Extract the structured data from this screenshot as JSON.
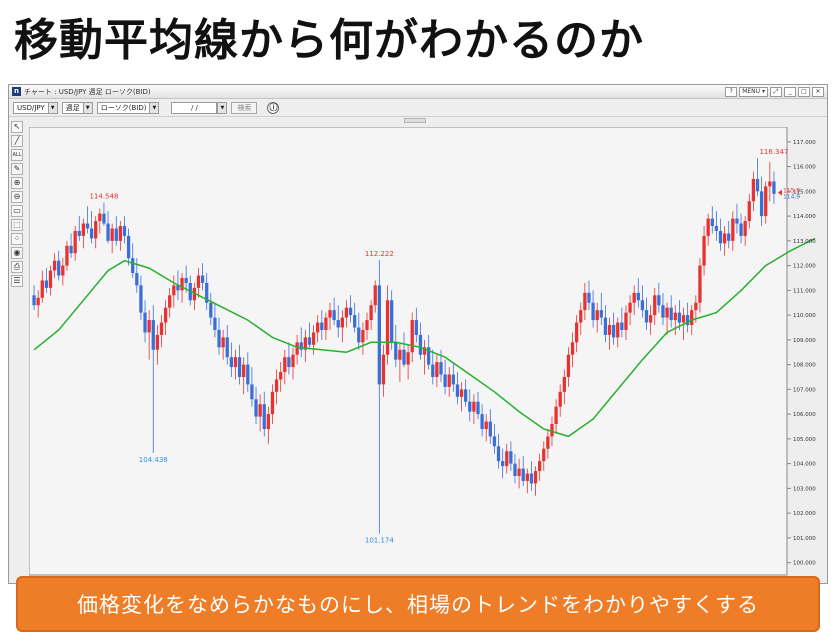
{
  "slide": {
    "title": "移動平均線から何がわかるのか",
    "caption": "価格変化をなめらかなものにし、相場のトレンドをわかりやすくする"
  },
  "window": {
    "title": "チャート : USD/JPY 週足 ローソク(BID)",
    "controls": [
      "?",
      "MENU ▾",
      "⤢",
      "_",
      "□",
      "✕"
    ]
  },
  "toolbar": {
    "symbol": "USD/JPY",
    "period": "週足",
    "chart_type": "ローソク(BID)",
    "date": "/ /",
    "search": "検索",
    "info": "ⓘ"
  },
  "tools": [
    "↖",
    "╱",
    "ALL",
    "✎",
    "⊕",
    "⊖",
    "▭",
    "⬚",
    "⁘",
    "◉",
    "⎙",
    "☰"
  ],
  "colors": {
    "up": "#e8322f",
    "down": "#3a6fd8",
    "ma": "#27b02e",
    "high_label": "#e8322f",
    "low_label": "#2f8fe0"
  },
  "chart_data": {
    "type": "candlestick",
    "title": "",
    "ylim": [
      99.5,
      117.6
    ],
    "y_ticks": [
      "117.000",
      "116.000",
      "115.000",
      "114.000",
      "113.000",
      "112.000",
      "111.000",
      "110.000",
      "109.000",
      "108.000",
      "107.000",
      "106.000",
      "105.000",
      "104.000",
      "103.000",
      "102.000",
      "101.000",
      "100.000"
    ],
    "y_tick_values": [
      117,
      116,
      115,
      114,
      113,
      112,
      111,
      110,
      109,
      108,
      107,
      106,
      105,
      104,
      103,
      102,
      101,
      100
    ],
    "annotations": [
      {
        "label": "114.548",
        "value": 114.548,
        "index": 17,
        "kind": "high"
      },
      {
        "label": "104.438",
        "value": 104.438,
        "index": 29,
        "kind": "low"
      },
      {
        "label": "112.222",
        "value": 112.222,
        "index": 84,
        "kind": "high"
      },
      {
        "label": "101.174",
        "value": 101.174,
        "index": 84,
        "kind": "low"
      },
      {
        "label": "116.347",
        "value": 116.347,
        "index": 180,
        "kind": "high"
      }
    ],
    "last_price": {
      "bid": "115.0",
      "ask": "114.9"
    },
    "ohlc": [
      [
        110.8,
        111.2,
        110.2,
        110.4
      ],
      [
        110.4,
        111.0,
        109.9,
        110.7
      ],
      [
        110.7,
        111.8,
        110.5,
        111.4
      ],
      [
        111.4,
        111.9,
        110.9,
        111.1
      ],
      [
        111.1,
        112.0,
        110.8,
        111.8
      ],
      [
        111.8,
        112.5,
        111.5,
        112.2
      ],
      [
        112.2,
        112.6,
        111.4,
        111.6
      ],
      [
        111.6,
        112.3,
        111.2,
        112.0
      ],
      [
        112.0,
        113.0,
        111.8,
        112.8
      ],
      [
        112.8,
        113.3,
        112.3,
        112.5
      ],
      [
        112.5,
        113.6,
        112.2,
        113.4
      ],
      [
        113.4,
        114.0,
        113.0,
        113.2
      ],
      [
        113.2,
        113.9,
        112.7,
        113.7
      ],
      [
        113.7,
        114.4,
        113.3,
        113.5
      ],
      [
        113.5,
        114.2,
        112.9,
        113.1
      ],
      [
        113.1,
        114.0,
        112.7,
        113.8
      ],
      [
        113.8,
        114.3,
        113.3,
        114.1
      ],
      [
        114.1,
        114.548,
        113.6,
        113.7
      ],
      [
        113.7,
        114.2,
        112.9,
        113.0
      ],
      [
        113.0,
        113.7,
        112.5,
        113.5
      ],
      [
        113.5,
        114.0,
        112.8,
        113.0
      ],
      [
        113.0,
        113.8,
        112.6,
        113.6
      ],
      [
        113.6,
        114.0,
        112.9,
        113.2
      ],
      [
        113.2,
        113.5,
        112.0,
        112.3
      ],
      [
        112.3,
        112.9,
        111.5,
        111.7
      ],
      [
        111.7,
        112.3,
        110.9,
        111.2
      ],
      [
        111.2,
        111.6,
        109.8,
        110.1
      ],
      [
        110.1,
        110.6,
        108.9,
        109.3
      ],
      [
        109.3,
        110.2,
        108.2,
        109.8
      ],
      [
        109.8,
        110.4,
        104.438,
        108.6
      ],
      [
        108.6,
        109.6,
        108.0,
        109.2
      ],
      [
        109.2,
        110.0,
        108.7,
        109.7
      ],
      [
        109.7,
        110.6,
        109.2,
        110.3
      ],
      [
        110.3,
        111.1,
        109.9,
        110.8
      ],
      [
        110.8,
        111.6,
        110.3,
        111.2
      ],
      [
        111.2,
        111.8,
        110.6,
        111.0
      ],
      [
        111.0,
        111.7,
        110.5,
        111.5
      ],
      [
        111.5,
        112.0,
        110.9,
        111.3
      ],
      [
        111.3,
        111.6,
        110.4,
        110.6
      ],
      [
        110.6,
        111.3,
        110.2,
        111.1
      ],
      [
        111.1,
        111.9,
        110.7,
        111.6
      ],
      [
        111.6,
        112.1,
        111.0,
        111.3
      ],
      [
        111.3,
        111.7,
        110.2,
        110.5
      ],
      [
        110.5,
        110.9,
        109.6,
        109.9
      ],
      [
        109.9,
        110.5,
        109.1,
        109.4
      ],
      [
        109.4,
        109.9,
        108.4,
        108.7
      ],
      [
        108.7,
        109.4,
        108.2,
        109.1
      ],
      [
        109.1,
        109.6,
        108.0,
        108.3
      ],
      [
        108.3,
        108.9,
        107.5,
        107.9
      ],
      [
        107.9,
        108.6,
        107.4,
        108.3
      ],
      [
        108.3,
        108.8,
        107.2,
        107.5
      ],
      [
        107.5,
        108.3,
        106.8,
        108.0
      ],
      [
        108.0,
        108.5,
        106.9,
        107.2
      ],
      [
        107.2,
        107.9,
        106.3,
        106.6
      ],
      [
        106.6,
        107.1,
        105.6,
        105.9
      ],
      [
        105.9,
        106.8,
        105.3,
        106.4
      ],
      [
        106.4,
        106.9,
        105.1,
        105.4
      ],
      [
        105.4,
        106.3,
        104.8,
        106.0
      ],
      [
        106.0,
        107.2,
        105.6,
        106.9
      ],
      [
        106.9,
        107.8,
        106.4,
        107.4
      ],
      [
        107.4,
        108.1,
        106.9,
        107.7
      ],
      [
        107.7,
        108.6,
        107.2,
        108.3
      ],
      [
        108.3,
        108.9,
        107.6,
        107.9
      ],
      [
        107.9,
        108.7,
        107.4,
        108.4
      ],
      [
        108.4,
        109.2,
        108.0,
        108.9
      ],
      [
        108.9,
        109.5,
        108.3,
        108.6
      ],
      [
        108.6,
        109.4,
        108.1,
        109.1
      ],
      [
        109.1,
        109.7,
        108.6,
        108.8
      ],
      [
        108.8,
        109.6,
        108.4,
        109.3
      ],
      [
        109.3,
        110.0,
        108.9,
        109.7
      ],
      [
        109.7,
        110.2,
        109.0,
        109.4
      ],
      [
        109.4,
        110.1,
        109.0,
        109.9
      ],
      [
        109.9,
        110.5,
        109.4,
        110.2
      ],
      [
        110.2,
        110.7,
        109.6,
        109.8
      ],
      [
        109.8,
        110.4,
        109.1,
        109.5
      ],
      [
        109.5,
        110.2,
        108.9,
        109.9
      ],
      [
        109.9,
        110.6,
        109.5,
        110.3
      ],
      [
        110.3,
        110.8,
        109.7,
        110.0
      ],
      [
        110.0,
        110.5,
        109.3,
        109.5
      ],
      [
        109.5,
        110.1,
        108.6,
        108.9
      ],
      [
        108.9,
        109.7,
        108.4,
        109.4
      ],
      [
        109.4,
        110.1,
        109.0,
        109.8
      ],
      [
        109.8,
        110.6,
        109.4,
        110.4
      ],
      [
        110.4,
        111.4,
        110.1,
        111.2
      ],
      [
        111.2,
        112.222,
        101.174,
        107.2
      ],
      [
        107.2,
        108.8,
        106.7,
        108.4
      ],
      [
        108.4,
        111.2,
        108.0,
        110.6
      ],
      [
        110.6,
        111.0,
        108.6,
        108.9
      ],
      [
        108.9,
        109.6,
        107.9,
        108.2
      ],
      [
        108.2,
        108.9,
        107.3,
        108.6
      ],
      [
        108.6,
        109.3,
        107.9,
        108.0
      ],
      [
        108.0,
        108.8,
        107.4,
        108.5
      ],
      [
        108.5,
        110.1,
        108.1,
        109.8
      ],
      [
        109.8,
        110.3,
        108.9,
        109.2
      ],
      [
        109.2,
        109.7,
        108.2,
        108.4
      ],
      [
        108.4,
        109.0,
        107.6,
        108.7
      ],
      [
        108.7,
        109.2,
        107.8,
        108.0
      ],
      [
        108.0,
        108.6,
        107.2,
        107.5
      ],
      [
        107.5,
        108.4,
        107.1,
        108.1
      ],
      [
        108.1,
        108.6,
        107.3,
        107.6
      ],
      [
        107.6,
        108.2,
        106.8,
        107.1
      ],
      [
        107.1,
        107.9,
        106.7,
        107.6
      ],
      [
        107.6,
        108.1,
        106.9,
        107.2
      ],
      [
        107.2,
        107.7,
        106.4,
        106.7
      ],
      [
        106.7,
        107.3,
        106.1,
        107.0
      ],
      [
        107.0,
        107.4,
        106.3,
        106.5
      ],
      [
        106.5,
        107.0,
        105.7,
        106.1
      ],
      [
        106.1,
        106.8,
        105.6,
        106.5
      ],
      [
        106.5,
        106.9,
        105.8,
        106.0
      ],
      [
        106.0,
        106.4,
        105.1,
        105.4
      ],
      [
        105.4,
        106.0,
        104.9,
        105.7
      ],
      [
        105.7,
        106.2,
        104.8,
        105.1
      ],
      [
        105.1,
        105.6,
        104.4,
        104.7
      ],
      [
        104.7,
        105.2,
        103.8,
        104.1
      ],
      [
        104.1,
        104.6,
        103.4,
        103.9
      ],
      [
        103.9,
        104.8,
        103.6,
        104.5
      ],
      [
        104.5,
        104.9,
        103.7,
        104.0
      ],
      [
        104.0,
        104.4,
        103.2,
        103.5
      ],
      [
        103.5,
        104.2,
        103.0,
        103.8
      ],
      [
        103.8,
        104.3,
        103.1,
        103.3
      ],
      [
        103.3,
        103.8,
        102.8,
        103.6
      ],
      [
        103.6,
        104.1,
        102.9,
        103.2
      ],
      [
        103.2,
        103.9,
        102.7,
        103.7
      ],
      [
        103.7,
        104.4,
        103.3,
        104.1
      ],
      [
        104.1,
        104.9,
        103.7,
        104.6
      ],
      [
        104.6,
        105.4,
        104.2,
        105.1
      ],
      [
        105.1,
        105.9,
        104.7,
        105.6
      ],
      [
        105.6,
        106.6,
        105.2,
        106.3
      ],
      [
        106.3,
        107.2,
        105.9,
        106.9
      ],
      [
        106.9,
        107.8,
        106.4,
        107.5
      ],
      [
        107.5,
        108.7,
        107.1,
        108.4
      ],
      [
        108.4,
        109.3,
        107.9,
        108.9
      ],
      [
        108.9,
        110.0,
        108.5,
        109.7
      ],
      [
        109.7,
        110.5,
        109.2,
        110.2
      ],
      [
        110.2,
        111.3,
        109.8,
        110.9
      ],
      [
        110.9,
        111.4,
        110.2,
        110.5
      ],
      [
        110.5,
        111.0,
        109.5,
        109.8
      ],
      [
        109.8,
        110.5,
        109.3,
        110.2
      ],
      [
        110.2,
        110.9,
        109.6,
        109.9
      ],
      [
        109.9,
        110.4,
        108.9,
        109.2
      ],
      [
        109.2,
        109.9,
        108.6,
        109.6
      ],
      [
        109.6,
        110.1,
        108.8,
        109.1
      ],
      [
        109.1,
        109.9,
        108.7,
        109.7
      ],
      [
        109.7,
        110.3,
        109.1,
        109.4
      ],
      [
        109.4,
        110.4,
        109.0,
        110.1
      ],
      [
        110.1,
        110.8,
        109.6,
        110.5
      ],
      [
        110.5,
        111.2,
        110.0,
        110.9
      ],
      [
        110.9,
        111.5,
        110.3,
        110.6
      ],
      [
        110.6,
        111.2,
        109.9,
        110.2
      ],
      [
        110.2,
        110.7,
        109.4,
        109.7
      ],
      [
        109.7,
        110.4,
        109.2,
        110.0
      ],
      [
        110.0,
        111.1,
        109.6,
        110.8
      ],
      [
        110.8,
        111.3,
        110.1,
        110.4
      ],
      [
        110.4,
        110.9,
        109.6,
        109.9
      ],
      [
        109.9,
        110.5,
        109.2,
        110.3
      ],
      [
        110.3,
        110.8,
        109.5,
        109.8
      ],
      [
        109.8,
        110.4,
        109.2,
        110.1
      ],
      [
        110.1,
        110.6,
        109.4,
        109.7
      ],
      [
        109.7,
        110.3,
        109.0,
        110.0
      ],
      [
        110.0,
        110.5,
        109.3,
        109.6
      ],
      [
        109.6,
        110.4,
        109.2,
        110.2
      ],
      [
        110.2,
        110.8,
        109.7,
        110.5
      ],
      [
        110.5,
        112.3,
        110.1,
        112.0
      ],
      [
        112.0,
        113.6,
        111.6,
        113.2
      ],
      [
        113.2,
        114.1,
        112.8,
        113.9
      ],
      [
        113.9,
        114.4,
        113.3,
        113.6
      ],
      [
        113.6,
        114.2,
        113.0,
        113.4
      ],
      [
        113.4,
        113.9,
        112.6,
        112.9
      ],
      [
        112.9,
        113.6,
        112.4,
        113.3
      ],
      [
        113.3,
        113.8,
        112.7,
        113.0
      ],
      [
        113.0,
        114.2,
        112.6,
        113.9
      ],
      [
        113.9,
        114.5,
        113.3,
        113.7
      ],
      [
        113.7,
        114.1,
        112.9,
        113.2
      ],
      [
        113.2,
        114.0,
        112.8,
        113.8
      ],
      [
        113.8,
        114.9,
        113.5,
        114.6
      ],
      [
        114.6,
        115.8,
        114.2,
        115.5
      ],
      [
        115.5,
        116.347,
        114.8,
        115.0
      ],
      [
        115.0,
        115.6,
        113.6,
        114.0
      ],
      [
        114.0,
        115.4,
        113.7,
        115.2
      ],
      [
        115.2,
        116.2,
        114.6,
        115.4
      ],
      [
        115.4,
        115.8,
        114.5,
        114.9
      ]
    ],
    "ma": [
      [
        0,
        108.6
      ],
      [
        6,
        109.4
      ],
      [
        12,
        110.6
      ],
      [
        18,
        111.8
      ],
      [
        22,
        112.2
      ],
      [
        28,
        111.9
      ],
      [
        34,
        111.3
      ],
      [
        40,
        110.8
      ],
      [
        46,
        110.3
      ],
      [
        52,
        109.8
      ],
      [
        58,
        109.1
      ],
      [
        64,
        108.7
      ],
      [
        70,
        108.6
      ],
      [
        76,
        108.5
      ],
      [
        82,
        108.9
      ],
      [
        88,
        108.9
      ],
      [
        94,
        108.7
      ],
      [
        100,
        108.3
      ],
      [
        106,
        107.6
      ],
      [
        112,
        106.9
      ],
      [
        118,
        106.1
      ],
      [
        124,
        105.4
      ],
      [
        130,
        105.1
      ],
      [
        136,
        105.8
      ],
      [
        142,
        107.0
      ],
      [
        148,
        108.2
      ],
      [
        154,
        109.3
      ],
      [
        160,
        109.8
      ],
      [
        166,
        110.1
      ],
      [
        172,
        111.0
      ],
      [
        178,
        112.0
      ],
      [
        184,
        112.6
      ],
      [
        190,
        113.1
      ]
    ]
  }
}
